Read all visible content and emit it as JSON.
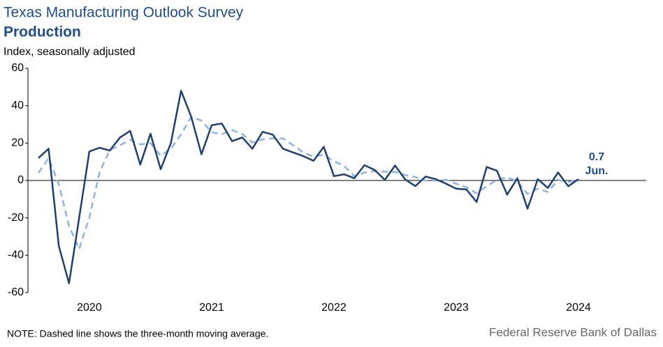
{
  "chart_data": {
    "type": "line",
    "title": "Texas Manufacturing Outlook Survey",
    "subtitle": "Production",
    "y_label": "Index, seasonally adjusted",
    "note": "NOTE: Dashed line shows the three-month  moving average.",
    "source": "Federal Reserve Bank of Dallas",
    "annotation": "Jun.",
    "categories": [
      null,
      null,
      null,
      null,
      null,
      "2020",
      null,
      null,
      null,
      null,
      null,
      null,
      null,
      null,
      null,
      null,
      null,
      "2021",
      null,
      null,
      null,
      null,
      null,
      null,
      null,
      null,
      null,
      null,
      null,
      "2022",
      null,
      null,
      null,
      null,
      null,
      null,
      null,
      null,
      null,
      null,
      null,
      "2023",
      null,
      null,
      null,
      null,
      null,
      null,
      null,
      null,
      null,
      null,
      null,
      "2024"
    ],
    "series": [
      {
        "name": "Production",
        "color": "#1f3f6e",
        "dashed": false,
        "values": [
          12,
          17,
          -35,
          -55,
          -20,
          15.5,
          17.5,
          16,
          23,
          26.5,
          8.5,
          25,
          6,
          20,
          48,
          34,
          14,
          29.5,
          30.5,
          21,
          23,
          17,
          26,
          24.5,
          17,
          15,
          13,
          10.5,
          18,
          2.3,
          3.3,
          1.2,
          8.2,
          5.6,
          0.3,
          8,
          0.5,
          -3,
          2.1,
          0.7,
          -1.7,
          -4.4,
          -4.8,
          -11.5,
          7.2,
          5.2,
          -7.6,
          1.2,
          -15.1,
          0.7,
          -4,
          4.3,
          -3.1,
          0.7
        ]
      },
      {
        "name": "Three-month moving average",
        "color": "#8db3e2",
        "dashed": true,
        "values": [
          4,
          12,
          -2,
          -24.3,
          -36.7,
          -19.8,
          4.3,
          16.3,
          18.8,
          21.8,
          19.3,
          20,
          13.2,
          17,
          24.7,
          34,
          32,
          25.8,
          24.7,
          27,
          24.8,
          20.3,
          22,
          22.5,
          22.5,
          18.8,
          15,
          12.8,
          13.8,
          10.3,
          7.9,
          2.3,
          4.2,
          5,
          4.7,
          4.6,
          2.9,
          1.8,
          -0.1,
          -0.1,
          0.4,
          -1.8,
          -3.6,
          -6.9,
          -3,
          0.3,
          1.6,
          -0.4,
          -7.2,
          -4.4,
          -6.1,
          0.3,
          -0.9,
          0.6
        ]
      }
    ],
    "ylim": [
      -60,
      60
    ],
    "yticks": [
      -60,
      -40,
      -20,
      0,
      20,
      40,
      60
    ],
    "grid": false
  }
}
